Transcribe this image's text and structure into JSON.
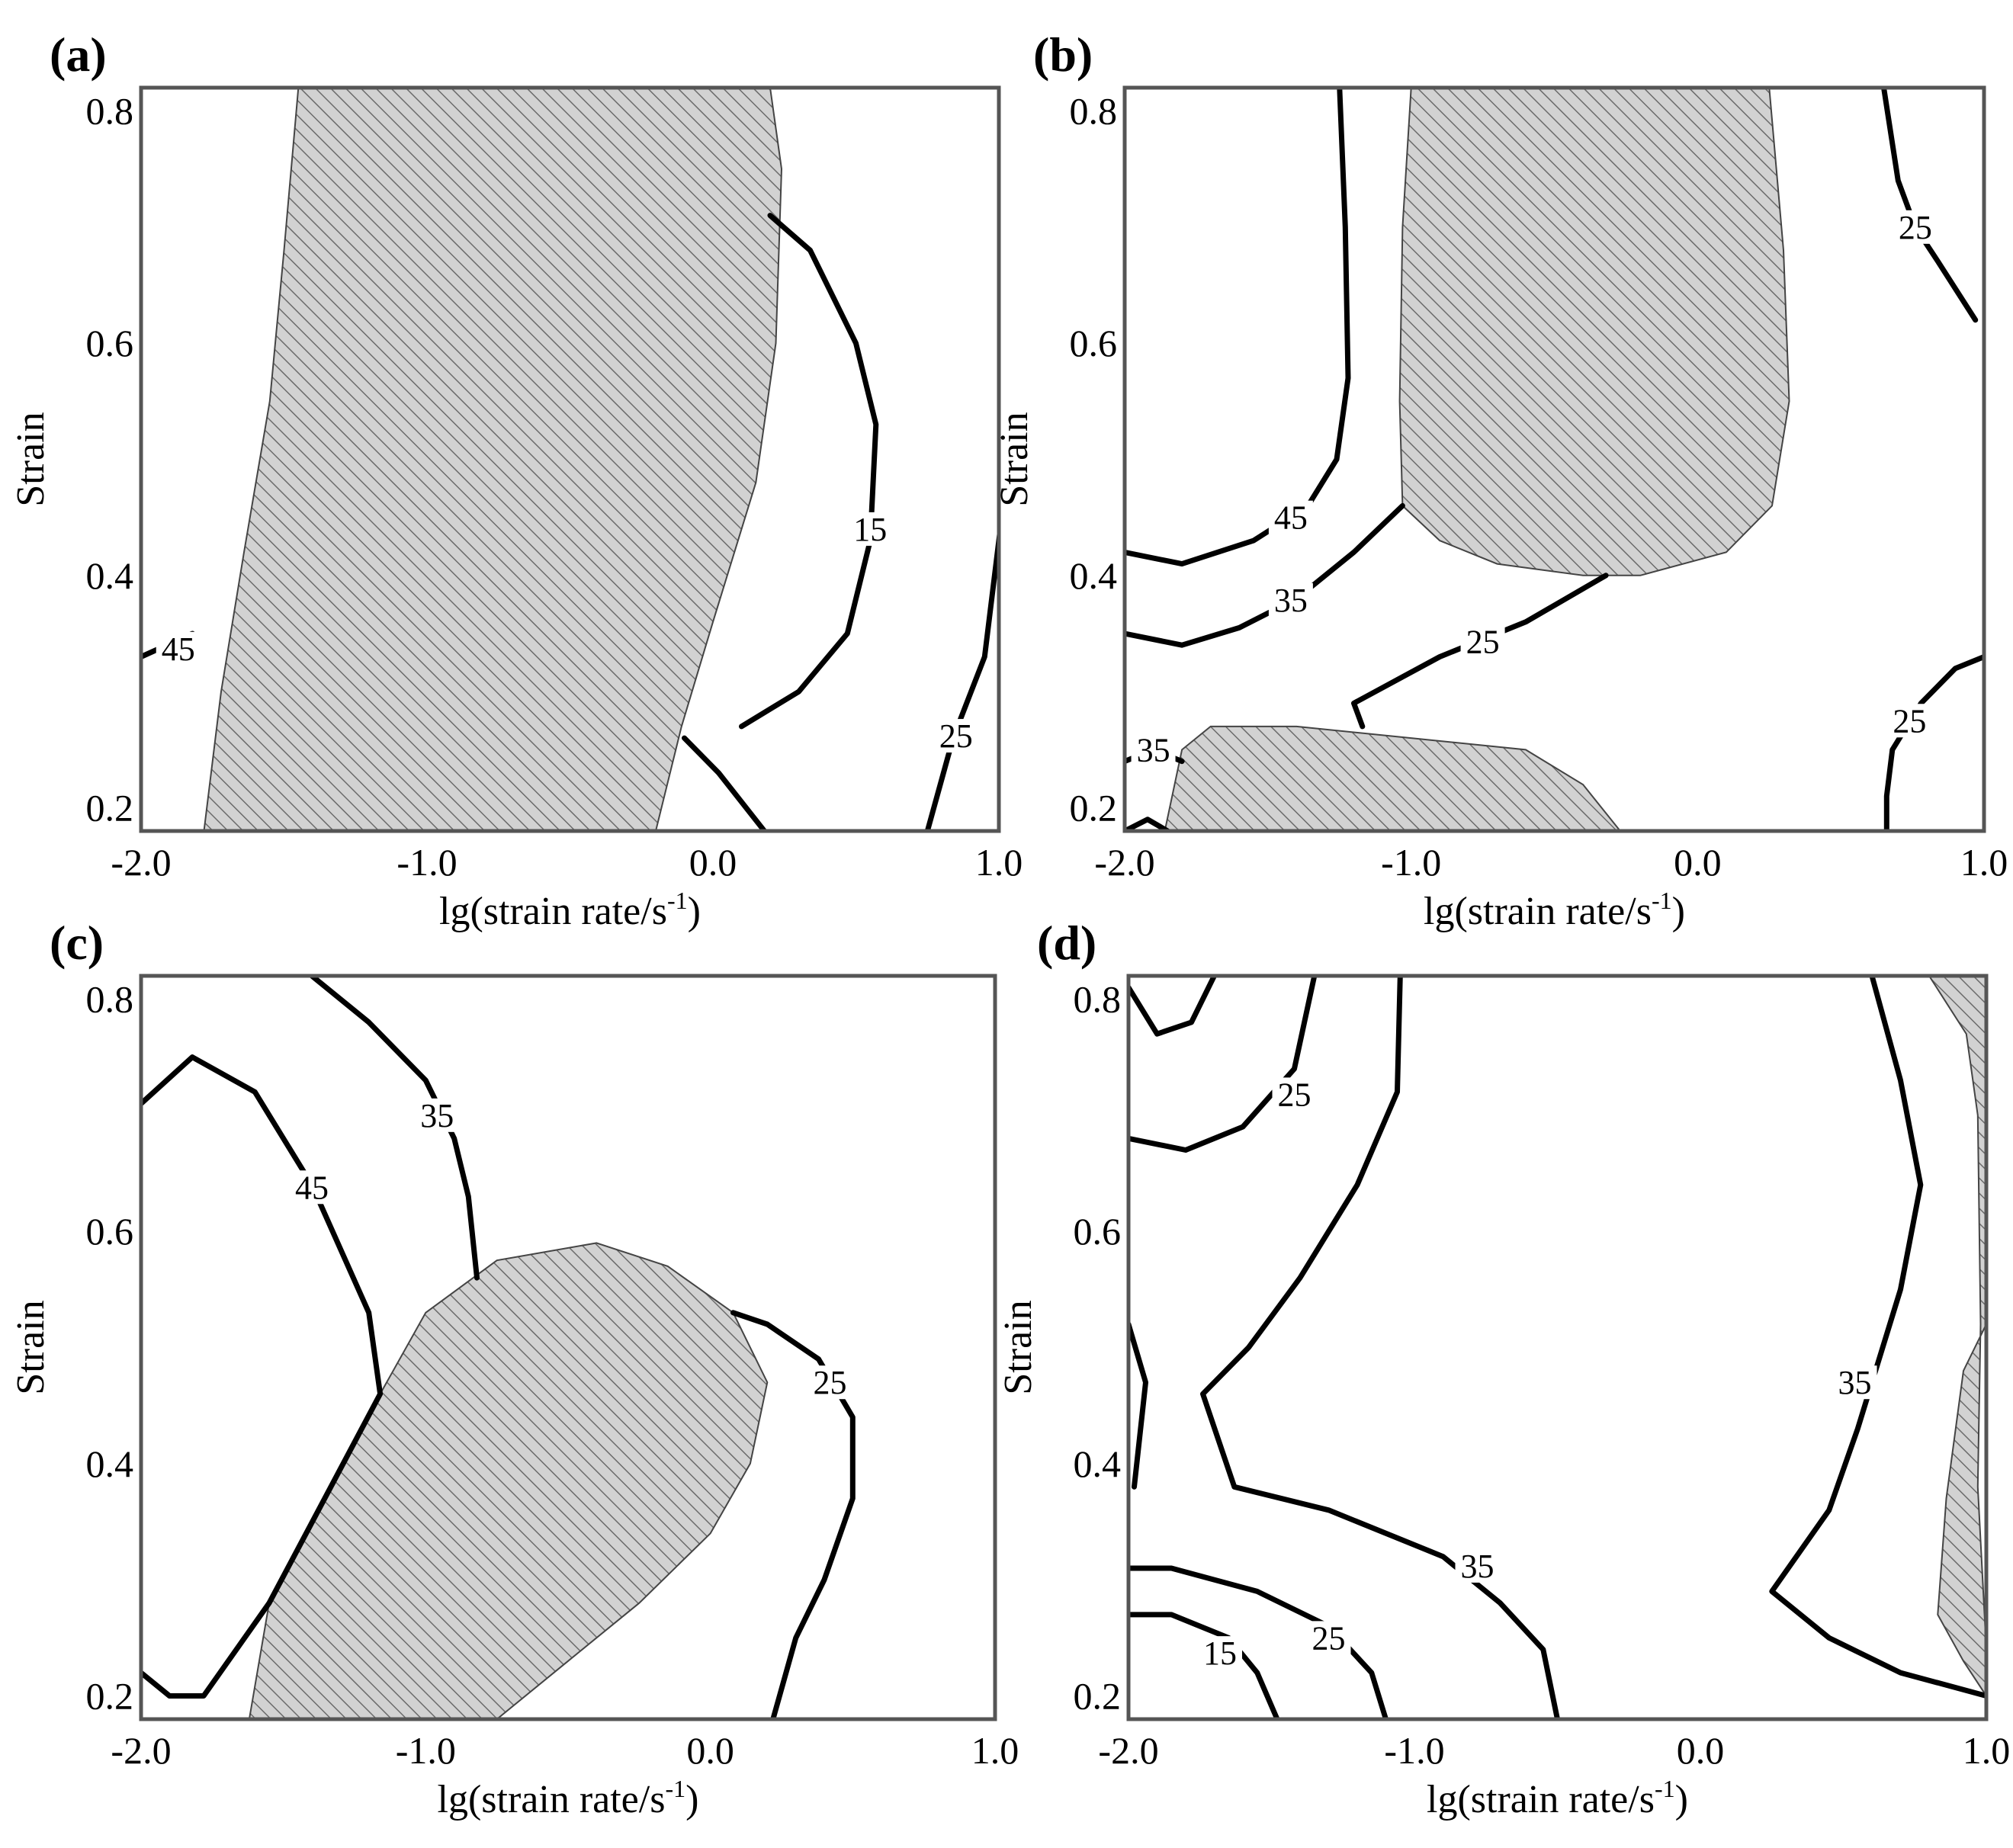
{
  "chart_data": [
    {
      "type": "contour",
      "panel_label": "(a)",
      "xlabel": "lg(strain rate/s",
      "xlabel_sup": "-1",
      "xlabel_suffix": ")",
      "ylabel": "Strain",
      "xlim": [
        -2.0,
        1.0
      ],
      "ylim": [
        0.18,
        0.82
      ],
      "x_ticks": [
        "-2.0",
        "-1.0",
        "0.0",
        "1.0"
      ],
      "x_tick_values": [
        -2.0,
        -1.0,
        0.0,
        1.0
      ],
      "y_ticks": [
        "0.2",
        "0.4",
        "0.6",
        "0.8"
      ],
      "y_tick_values": [
        0.2,
        0.4,
        0.6,
        0.8
      ],
      "hatched_regions": [
        [
          [
            -1.78,
            0.18
          ],
          [
            -1.72,
            0.3
          ],
          [
            -1.64,
            0.42
          ],
          [
            -1.55,
            0.55
          ],
          [
            -1.5,
            0.68
          ],
          [
            -1.45,
            0.82
          ],
          [
            0.2,
            0.82
          ],
          [
            0.24,
            0.75
          ],
          [
            0.22,
            0.6
          ],
          [
            0.15,
            0.48
          ],
          [
            0.0,
            0.36
          ],
          [
            -0.11,
            0.27
          ],
          [
            -0.2,
            0.18
          ]
        ]
      ],
      "contours": [
        {
          "level": "45",
          "points": [
            [
              -2.0,
              0.33
            ],
            [
              -1.82,
              0.35
            ]
          ],
          "label_at": [
            -1.87,
            0.337
          ]
        },
        {
          "level": "15",
          "points": [
            [
              0.2,
              0.71
            ],
            [
              0.34,
              0.68
            ],
            [
              0.5,
              0.6
            ],
            [
              0.57,
              0.53
            ],
            [
              0.55,
              0.43
            ],
            [
              0.47,
              0.35
            ],
            [
              0.3,
              0.3
            ],
            [
              0.1,
              0.27
            ]
          ],
          "label_at": [
            0.55,
            0.44
          ]
        },
        {
          "level": "",
          "points": [
            [
              -0.1,
              0.26
            ],
            [
              0.02,
              0.23
            ],
            [
              0.18,
              0.18
            ]
          ]
        },
        {
          "level": "25",
          "points": [
            [
              0.75,
              0.18
            ],
            [
              0.84,
              0.26
            ],
            [
              0.95,
              0.33
            ],
            [
              1.01,
              0.45
            ],
            [
              1.04,
              0.59
            ]
          ],
          "label_at": [
            0.85,
            0.262
          ]
        }
      ]
    },
    {
      "type": "contour",
      "panel_label": "(b)",
      "xlabel": "lg(strain rate/s",
      "xlabel_sup": "-1",
      "xlabel_suffix": ")",
      "ylabel": "Strain",
      "xlim": [
        -2.0,
        1.0
      ],
      "ylim": [
        0.18,
        0.82
      ],
      "x_ticks": [
        "-2.0",
        "-1.0",
        "0.0",
        "1.0"
      ],
      "x_tick_values": [
        -2.0,
        -1.0,
        0.0,
        1.0
      ],
      "y_ticks": [
        "0.2",
        "0.4",
        "0.6",
        "0.8"
      ],
      "y_tick_values": [
        0.2,
        0.4,
        0.6,
        0.8
      ],
      "hatched_regions": [
        [
          [
            -1.0,
            0.82
          ],
          [
            -1.03,
            0.7
          ],
          [
            -1.04,
            0.55
          ],
          [
            -1.03,
            0.46
          ],
          [
            -0.9,
            0.43
          ],
          [
            -0.7,
            0.41
          ],
          [
            -0.4,
            0.4
          ],
          [
            -0.2,
            0.4
          ],
          [
            0.1,
            0.42
          ],
          [
            0.26,
            0.46
          ],
          [
            0.32,
            0.55
          ],
          [
            0.3,
            0.68
          ],
          [
            0.25,
            0.82
          ]
        ],
        [
          [
            -1.86,
            0.18
          ],
          [
            -1.8,
            0.25
          ],
          [
            -1.7,
            0.27
          ],
          [
            -1.4,
            0.27
          ],
          [
            -1.0,
            0.26
          ],
          [
            -0.6,
            0.25
          ],
          [
            -0.4,
            0.22
          ],
          [
            -0.27,
            0.18
          ]
        ]
      ],
      "contours": [
        {
          "level": "45",
          "points": [
            [
              -1.25,
              0.82
            ],
            [
              -1.23,
              0.7
            ],
            [
              -1.22,
              0.57
            ],
            [
              -1.26,
              0.5
            ],
            [
              -1.36,
              0.46
            ],
            [
              -1.55,
              0.43
            ],
            [
              -1.8,
              0.41
            ],
            [
              -2.0,
              0.42
            ]
          ],
          "label_at": [
            -1.42,
            0.45
          ]
        },
        {
          "level": "35",
          "points": [
            [
              -1.03,
              0.46
            ],
            [
              -1.2,
              0.42
            ],
            [
              -1.4,
              0.38
            ],
            [
              -1.6,
              0.355
            ],
            [
              -1.8,
              0.34
            ],
            [
              -2.0,
              0.35
            ]
          ],
          "label_at": [
            -1.42,
            0.379
          ]
        },
        {
          "level": "25",
          "points": [
            [
              -0.32,
              0.4
            ],
            [
              -0.6,
              0.36
            ],
            [
              -0.9,
              0.33
            ],
            [
              -1.2,
              0.29
            ],
            [
              -1.17,
              0.27
            ]
          ],
          "label_at": [
            -0.75,
            0.343
          ]
        },
        {
          "level": "35",
          "points": [
            [
              -2.0,
              0.24
            ],
            [
              -1.9,
              0.25
            ],
            [
              -1.8,
              0.24
            ]
          ],
          "label_at": [
            -1.9,
            0.25
          ]
        },
        {
          "level": "",
          "points": [
            [
              -2.0,
              0.18
            ],
            [
              -1.92,
              0.19
            ],
            [
              -1.85,
              0.18
            ]
          ]
        },
        {
          "level": "25",
          "points": [
            [
              1.0,
              0.33
            ],
            [
              0.9,
              0.32
            ],
            [
              0.78,
              0.29
            ],
            [
              0.68,
              0.25
            ],
            [
              0.66,
              0.21
            ],
            [
              0.66,
              0.18
            ]
          ],
          "label_at": [
            0.74,
            0.275
          ]
        },
        {
          "level": "25",
          "points": [
            [
              0.65,
              0.82
            ],
            [
              0.7,
              0.74
            ],
            [
              0.76,
              0.7
            ],
            [
              0.84,
              0.67
            ],
            [
              0.97,
              0.62
            ]
          ],
          "label_at": [
            0.76,
            0.7
          ]
        }
      ]
    },
    {
      "type": "contour",
      "panel_label": "(c)",
      "xlabel": "lg(strain rate/s",
      "xlabel_sup": "-1",
      "xlabel_suffix": ")",
      "ylabel": "Strain",
      "xlim": [
        -2.0,
        1.0
      ],
      "ylim": [
        0.18,
        0.82
      ],
      "x_ticks": [
        "-2.0",
        "-1.0",
        "0.0",
        "1.0"
      ],
      "x_tick_values": [
        -2.0,
        -1.0,
        0.0,
        1.0
      ],
      "y_ticks": [
        "0.2",
        "0.4",
        "0.6",
        "0.8"
      ],
      "y_tick_values": [
        0.2,
        0.4,
        0.6,
        0.8
      ],
      "hatched_regions": [
        [
          [
            -1.62,
            0.18
          ],
          [
            -1.55,
            0.28
          ],
          [
            -1.35,
            0.37
          ],
          [
            -1.16,
            0.46
          ],
          [
            -1.0,
            0.53
          ],
          [
            -0.75,
            0.575
          ],
          [
            -0.4,
            0.59
          ],
          [
            -0.15,
            0.57
          ],
          [
            0.08,
            0.53
          ],
          [
            0.2,
            0.47
          ],
          [
            0.14,
            0.4
          ],
          [
            0.0,
            0.34
          ],
          [
            -0.25,
            0.28
          ],
          [
            -0.5,
            0.23
          ],
          [
            -0.75,
            0.18
          ]
        ]
      ],
      "contours": [
        {
          "level": "45",
          "points": [
            [
              -2.0,
              0.71
            ],
            [
              -1.82,
              0.75
            ],
            [
              -1.6,
              0.72
            ],
            [
              -1.4,
              0.64
            ],
            [
              -1.2,
              0.53
            ],
            [
              -1.16,
              0.46
            ],
            [
              -1.55,
              0.28
            ],
            [
              -1.78,
              0.2
            ],
            [
              -1.9,
              0.2
            ],
            [
              -2.0,
              0.22
            ]
          ],
          "label_at": [
            -1.4,
            0.638
          ]
        },
        {
          "level": "35",
          "points": [
            [
              -1.4,
              0.82
            ],
            [
              -1.2,
              0.78
            ],
            [
              -1.0,
              0.73
            ],
            [
              -0.9,
              0.68
            ],
            [
              -0.85,
              0.63
            ],
            [
              -0.82,
              0.56
            ]
          ],
          "label_at": [
            -0.96,
            0.7
          ]
        },
        {
          "level": "25",
          "points": [
            [
              0.08,
              0.53
            ],
            [
              0.2,
              0.52
            ],
            [
              0.38,
              0.49
            ],
            [
              0.5,
              0.44
            ],
            [
              0.5,
              0.37
            ],
            [
              0.4,
              0.3
            ],
            [
              0.3,
              0.25
            ],
            [
              0.22,
              0.18
            ]
          ],
          "label_at": [
            0.42,
            0.47
          ]
        }
      ]
    },
    {
      "type": "contour",
      "panel_label": "(d)",
      "xlabel": "lg(strain rate/s",
      "xlabel_sup": "-1",
      "xlabel_suffix": ")",
      "ylabel": "Strain",
      "xlim": [
        -2.0,
        1.0
      ],
      "ylim": [
        0.18,
        0.82
      ],
      "x_ticks": [
        "-2.0",
        "-1.0",
        "0.0",
        "1.0"
      ],
      "x_tick_values": [
        -2.0,
        -1.0,
        0.0,
        1.0
      ],
      "y_ticks": [
        "0.2",
        "0.4",
        "0.6",
        "0.8"
      ],
      "y_tick_values": [
        0.2,
        0.4,
        0.6,
        0.8
      ],
      "hatched_regions": [
        [
          [
            0.8,
            0.82
          ],
          [
            1.0,
            0.82
          ],
          [
            1.0,
            0.52
          ],
          [
            0.92,
            0.48
          ],
          [
            0.86,
            0.37
          ],
          [
            0.83,
            0.27
          ],
          [
            0.92,
            0.23
          ],
          [
            1.0,
            0.2
          ],
          [
            1.0,
            0.24
          ],
          [
            0.97,
            0.38
          ],
          [
            0.98,
            0.52
          ],
          [
            0.97,
            0.7
          ],
          [
            0.93,
            0.77
          ]
        ]
      ],
      "contours": [
        {
          "level": "",
          "points": [
            [
              -2.0,
              0.81
            ],
            [
              -1.9,
              0.77
            ],
            [
              -1.78,
              0.78
            ],
            [
              -1.7,
              0.82
            ]
          ]
        },
        {
          "level": "25",
          "points": [
            [
              -1.35,
              0.82
            ],
            [
              -1.42,
              0.74
            ],
            [
              -1.6,
              0.69
            ],
            [
              -1.8,
              0.67
            ],
            [
              -2.0,
              0.68
            ]
          ],
          "label_at": [
            -1.42,
            0.718
          ]
        },
        {
          "level": "35",
          "points": [
            [
              -1.05,
              0.82
            ],
            [
              -1.06,
              0.72
            ],
            [
              -1.2,
              0.64
            ],
            [
              -1.4,
              0.56
            ],
            [
              -1.58,
              0.5
            ],
            [
              -1.74,
              0.46
            ],
            [
              -1.63,
              0.38
            ],
            [
              -1.3,
              0.36
            ],
            [
              -0.9,
              0.32
            ],
            [
              -0.7,
              0.28
            ],
            [
              -0.55,
              0.24
            ],
            [
              -0.5,
              0.18
            ]
          ],
          "label_at": [
            -0.78,
            0.312
          ]
        },
        {
          "level": "",
          "points": [
            [
              -2.0,
              0.52
            ],
            [
              -1.94,
              0.47
            ],
            [
              -1.98,
              0.38
            ]
          ]
        },
        {
          "level": "25",
          "points": [
            [
              -2.0,
              0.31
            ],
            [
              -1.85,
              0.31
            ],
            [
              -1.55,
              0.29
            ],
            [
              -1.3,
              0.26
            ],
            [
              -1.15,
              0.22
            ],
            [
              -1.1,
              0.18
            ]
          ],
          "label_at": [
            -1.3,
            0.25
          ]
        },
        {
          "level": "15",
          "points": [
            [
              -2.0,
              0.27
            ],
            [
              -1.85,
              0.27
            ],
            [
              -1.65,
              0.25
            ],
            [
              -1.55,
              0.22
            ],
            [
              -1.48,
              0.18
            ]
          ],
          "label_at": [
            -1.68,
            0.237
          ]
        },
        {
          "level": "35",
          "points": [
            [
              0.6,
              0.82
            ],
            [
              0.7,
              0.73
            ],
            [
              0.77,
              0.64
            ],
            [
              0.7,
              0.55
            ],
            [
              0.55,
              0.43
            ],
            [
              0.45,
              0.36
            ],
            [
              0.25,
              0.29
            ],
            [
              0.45,
              0.25
            ],
            [
              0.7,
              0.22
            ],
            [
              1.0,
              0.2
            ]
          ],
          "label_at": [
            0.54,
            0.47
          ]
        }
      ]
    }
  ],
  "colors": {
    "hatch_fill": "#d2d2d2",
    "hatch_line": "#6b6b6b",
    "contour": "#000000",
    "frame": "#555555"
  }
}
